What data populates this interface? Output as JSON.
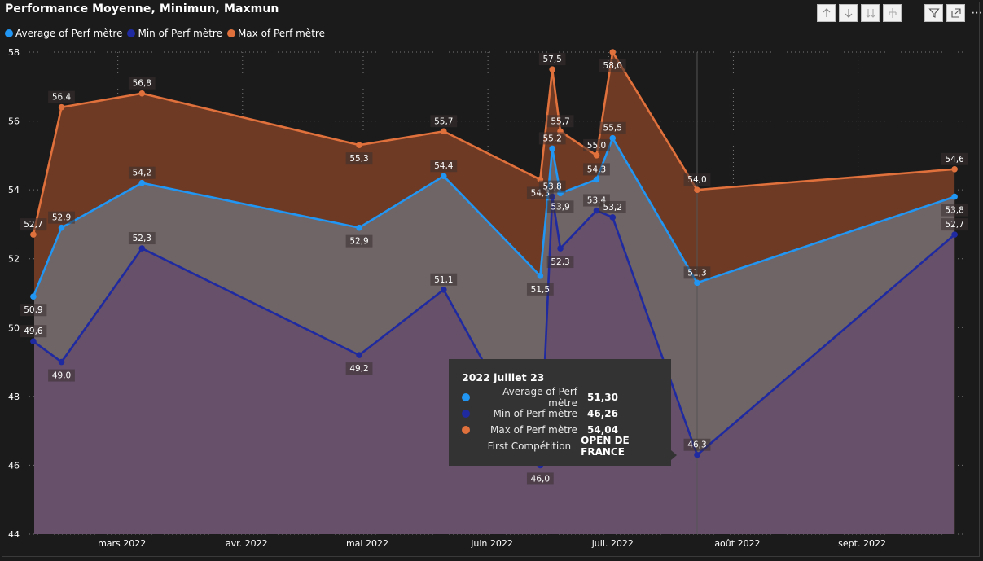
{
  "title": "Performance Moyenne, Minimun, Maxmun",
  "colors": {
    "avg": "#2196f3",
    "min": "#1f2aa0",
    "max": "#e0703c",
    "avgArea": "#6f6466",
    "minArea": "#66506a",
    "maxArea": "#6e3a24"
  },
  "toolbar": {
    "icons": [
      "arrow-up-icon",
      "arrow-down-icon",
      "double-arrow-down-icon",
      "expand-hierarchy-icon",
      "filter-icon",
      "focus-mode-icon",
      "more-options-icon"
    ],
    "more_label": "⋯"
  },
  "chart_data": {
    "type": "area",
    "title": "Performance Moyenne, Minimun, Maxmun",
    "xlabel": "",
    "ylabel": "",
    "ylim": [
      44,
      58
    ],
    "yticks": [
      44,
      46,
      48,
      50,
      52,
      54,
      56,
      58
    ],
    "xlim": [
      "2022-02-07",
      "2022-09-27"
    ],
    "xticks": [
      {
        "date": "2022-03-01",
        "label": "mars 2022"
      },
      {
        "date": "2022-04-01",
        "label": "avr. 2022"
      },
      {
        "date": "2022-05-01",
        "label": "mai 2022"
      },
      {
        "date": "2022-06-01",
        "label": "juin 2022"
      },
      {
        "date": "2022-07-01",
        "label": "juil. 2022"
      },
      {
        "date": "2022-08-01",
        "label": "août 2022"
      },
      {
        "date": "2022-09-01",
        "label": "sept. 2022"
      }
    ],
    "grid": true,
    "legend_position": "top-left",
    "x": [
      "2022-02-08",
      "2022-02-15",
      "2022-03-07",
      "2022-04-30",
      "2022-05-21",
      "2022-06-14",
      "2022-06-17",
      "2022-06-19",
      "2022-06-28",
      "2022-07-02",
      "2022-07-23",
      "2022-09-25"
    ],
    "series": [
      {
        "name": "Average of Perf mètre",
        "key": "avg",
        "values": [
          50.9,
          52.9,
          54.2,
          52.9,
          54.4,
          51.5,
          55.2,
          53.9,
          54.3,
          55.5,
          51.3,
          53.8
        ]
      },
      {
        "name": "Min of Perf mètre",
        "key": "min",
        "values": [
          49.6,
          49.0,
          52.3,
          49.2,
          51.1,
          46.0,
          53.8,
          52.3,
          53.4,
          53.2,
          46.3,
          52.7
        ]
      },
      {
        "name": "Max of Perf mètre",
        "key": "max",
        "values": [
          52.7,
          56.4,
          56.8,
          55.3,
          55.7,
          54.3,
          57.5,
          55.7,
          55.0,
          58.0,
          54.0,
          54.6
        ]
      }
    ],
    "hover_date": "2022-07-23",
    "tooltip": {
      "title": "2022 juillet 23",
      "rows": [
        {
          "label": "Average of Perf mètre",
          "value": "51,30",
          "key": "avg"
        },
        {
          "label": "Min of Perf mètre",
          "value": "46,26",
          "key": "min"
        },
        {
          "label": "Max of Perf mètre",
          "value": "54,04",
          "key": "max"
        },
        {
          "label": "First Compétition",
          "value": "OPEN DE FRANCE",
          "key": ""
        }
      ]
    }
  }
}
